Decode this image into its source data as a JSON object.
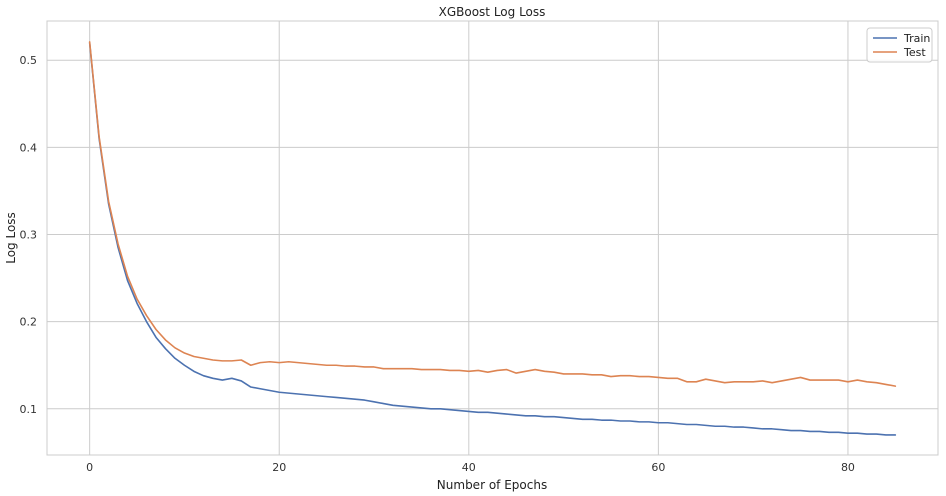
{
  "chart_data": {
    "type": "line",
    "title": "XGBoost Log Loss",
    "xlabel": "Number of Epochs",
    "ylabel": "Log Loss",
    "xlim": [
      -4.5,
      89.5
    ],
    "ylim": [
      0.047,
      0.545
    ],
    "xticks": [
      0,
      20,
      40,
      60,
      80
    ],
    "yticks": [
      0.1,
      0.2,
      0.3,
      0.4,
      0.5
    ],
    "xtick_labels": [
      "0",
      "20",
      "40",
      "60",
      "80"
    ],
    "ytick_labels": [
      "0.1",
      "0.2",
      "0.3",
      "0.4",
      "0.5"
    ],
    "grid": true,
    "legend_position": "top-right",
    "series": [
      {
        "name": "Train",
        "color": "#4c72b0",
        "x": [
          0,
          1,
          2,
          3,
          4,
          5,
          6,
          7,
          8,
          9,
          10,
          11,
          12,
          13,
          14,
          15,
          16,
          17,
          18,
          19,
          20,
          21,
          22,
          23,
          24,
          25,
          26,
          27,
          28,
          29,
          30,
          31,
          32,
          33,
          34,
          35,
          36,
          37,
          38,
          39,
          40,
          41,
          42,
          43,
          44,
          45,
          46,
          47,
          48,
          49,
          50,
          51,
          52,
          53,
          54,
          55,
          56,
          57,
          58,
          59,
          60,
          61,
          62,
          63,
          64,
          65,
          66,
          67,
          68,
          69,
          70,
          71,
          72,
          73,
          74,
          75,
          76,
          77,
          78,
          79,
          80,
          81,
          82,
          83,
          84,
          85
        ],
        "y": [
          0.52,
          0.41,
          0.335,
          0.285,
          0.247,
          0.221,
          0.2,
          0.182,
          0.169,
          0.158,
          0.15,
          0.143,
          0.138,
          0.135,
          0.133,
          0.135,
          0.132,
          0.125,
          0.123,
          0.121,
          0.119,
          0.118,
          0.117,
          0.116,
          0.115,
          0.114,
          0.113,
          0.112,
          0.111,
          0.11,
          0.108,
          0.106,
          0.104,
          0.103,
          0.102,
          0.101,
          0.1,
          0.1,
          0.099,
          0.098,
          0.097,
          0.096,
          0.096,
          0.095,
          0.094,
          0.093,
          0.092,
          0.092,
          0.091,
          0.091,
          0.09,
          0.089,
          0.088,
          0.088,
          0.087,
          0.087,
          0.086,
          0.086,
          0.085,
          0.085,
          0.084,
          0.084,
          0.083,
          0.082,
          0.082,
          0.081,
          0.08,
          0.08,
          0.079,
          0.079,
          0.078,
          0.077,
          0.077,
          0.076,
          0.075,
          0.075,
          0.074,
          0.074,
          0.073,
          0.073,
          0.072,
          0.072,
          0.071,
          0.071,
          0.07,
          0.07
        ]
      },
      {
        "name": "Test",
        "color": "#dd8452",
        "x": [
          0,
          1,
          2,
          3,
          4,
          5,
          6,
          7,
          8,
          9,
          10,
          11,
          12,
          13,
          14,
          15,
          16,
          17,
          18,
          19,
          20,
          21,
          22,
          23,
          24,
          25,
          26,
          27,
          28,
          29,
          30,
          31,
          32,
          33,
          34,
          35,
          36,
          37,
          38,
          39,
          40,
          41,
          42,
          43,
          44,
          45,
          46,
          47,
          48,
          49,
          50,
          51,
          52,
          53,
          54,
          55,
          56,
          57,
          58,
          59,
          60,
          61,
          62,
          63,
          64,
          65,
          66,
          67,
          68,
          69,
          70,
          71,
          72,
          73,
          74,
          75,
          76,
          77,
          78,
          79,
          80,
          81,
          82,
          83,
          84,
          85
        ],
        "y": [
          0.521,
          0.412,
          0.338,
          0.289,
          0.252,
          0.226,
          0.207,
          0.191,
          0.179,
          0.17,
          0.164,
          0.16,
          0.158,
          0.156,
          0.155,
          0.155,
          0.156,
          0.15,
          0.153,
          0.154,
          0.153,
          0.154,
          0.153,
          0.152,
          0.151,
          0.15,
          0.15,
          0.149,
          0.149,
          0.148,
          0.148,
          0.146,
          0.146,
          0.146,
          0.146,
          0.145,
          0.145,
          0.145,
          0.144,
          0.144,
          0.143,
          0.144,
          0.142,
          0.144,
          0.145,
          0.141,
          0.143,
          0.145,
          0.143,
          0.142,
          0.14,
          0.14,
          0.14,
          0.139,
          0.139,
          0.137,
          0.138,
          0.138,
          0.137,
          0.137,
          0.136,
          0.135,
          0.135,
          0.131,
          0.131,
          0.134,
          0.132,
          0.13,
          0.131,
          0.131,
          0.131,
          0.132,
          0.13,
          0.132,
          0.134,
          0.136,
          0.133,
          0.133,
          0.133,
          0.133,
          0.131,
          0.133,
          0.131,
          0.13,
          0.128,
          0.126
        ]
      }
    ]
  }
}
